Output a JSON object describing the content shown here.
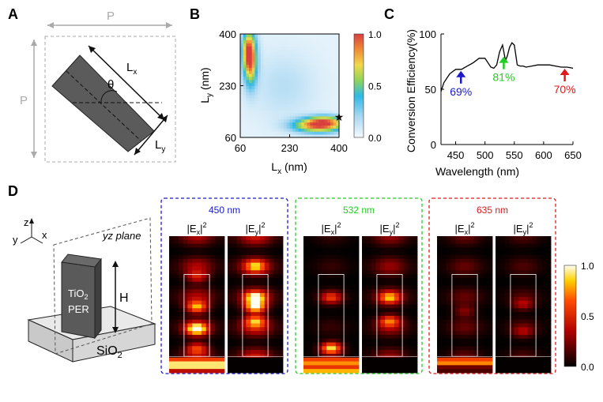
{
  "panels": {
    "a": {
      "letter": "A",
      "p_top": "P",
      "p_left": "P",
      "lx": "L",
      "lx_sub": "x",
      "ly": "L",
      "ly_sub": "y",
      "theta": "θ"
    },
    "b": {
      "letter": "B"
    },
    "c": {
      "letter": "C"
    },
    "d": {
      "letter": "D",
      "axis_z": "z",
      "axis_y": "y",
      "axis_x": "x",
      "plane_label": "yz plane",
      "per_l1": "TiO",
      "per_l1_sub": "2",
      "per_l2": "PER",
      "height": "H",
      "substrate": "SiO",
      "substrate_sub": "2"
    }
  },
  "chart_data": [
    {
      "type": "heatmap",
      "panel": "B",
      "xlabel": "L",
      "xlabel_sub": "x",
      "xlabel_unit": " (nm)",
      "ylabel": "L",
      "ylabel_sub": "y",
      "ylabel_unit": " (nm)",
      "xlim": [
        60,
        400
      ],
      "ylim": [
        60,
        400
      ],
      "xticks": [
        60,
        230,
        400
      ],
      "yticks": [
        60,
        230,
        400
      ],
      "colorbar": {
        "range": [
          0,
          1
        ],
        "ticks": [
          "0.0",
          "0.5",
          "1.0"
        ]
      },
      "marker": {
        "symbol": "★",
        "x": 400,
        "y": 128
      },
      "lobes": [
        {
          "x": 95,
          "y": 320,
          "sx": 16,
          "sy": 60,
          "amp": 0.92
        },
        {
          "x": 82,
          "y": 350,
          "sx": 12,
          "sy": 40,
          "amp": 0.35
        },
        {
          "x": 330,
          "y": 100,
          "sx": 60,
          "sy": 16,
          "amp": 0.92
        },
        {
          "x": 355,
          "y": 118,
          "sx": 45,
          "sy": 12,
          "amp": 0.4
        },
        {
          "x": 210,
          "y": 230,
          "sx": 75,
          "sy": 75,
          "amp": 0.12
        }
      ]
    },
    {
      "type": "line",
      "panel": "C",
      "xlabel": "Wavelength (nm)",
      "ylabel": "Conversion Efficiency(%)",
      "xlim": [
        425,
        650
      ],
      "ylim": [
        0,
        100
      ],
      "xticks": [
        450,
        500,
        550,
        600,
        650
      ],
      "yticks": [
        0,
        50,
        100
      ],
      "x": [
        425,
        430,
        440,
        450,
        460,
        470,
        480,
        490,
        500,
        510,
        515,
        520,
        525,
        530,
        535,
        538,
        542,
        546,
        550,
        555,
        560,
        565,
        570,
        580,
        590,
        600,
        610,
        620,
        630,
        640,
        650
      ],
      "y": [
        48,
        56,
        64,
        68,
        68,
        71,
        74,
        78,
        78,
        70,
        69,
        72,
        84,
        90,
        76,
        80,
        88,
        92,
        90,
        72,
        71,
        71,
        70,
        71,
        72,
        72,
        72,
        71,
        70,
        70,
        69
      ],
      "annotations": [
        {
          "text": "69%",
          "x": 459,
          "y": 68,
          "color": "#1a1acc"
        },
        {
          "text": "81%",
          "x": 532,
          "y": 81,
          "color": "#22cc22"
        },
        {
          "text": "70%",
          "x": 636,
          "y": 70,
          "color": "#e01a1a"
        }
      ]
    },
    {
      "type": "heatmap",
      "panel": "D",
      "colorbar": {
        "range": [
          0,
          1
        ],
        "ticks": [
          "0.0",
          "0.5",
          "1.0"
        ]
      },
      "groups": [
        {
          "wavelength": "450 nm",
          "color": "#1a1acc",
          "maps": [
            {
              "label": "|E",
              "sub": "x",
              "sup": "2",
              "peaks": [
                0.3,
                0.52,
                0.68,
                0.82
              ],
              "amps": [
                0.4,
                0.75,
                0.9,
                0.5
              ],
              "bg": 0.35,
              "bands": [
                0.92,
                0.96
              ]
            },
            {
              "label": "|E",
              "sub": "y",
              "sup": "2",
              "peaks": [
                0.22,
                0.45,
                0.52,
                0.62
              ],
              "amps": [
                0.5,
                0.7,
                0.9,
                0.6
              ],
              "bg": 0.45,
              "bands": []
            }
          ]
        },
        {
          "wavelength": "532 nm",
          "color": "#22cc22",
          "maps": [
            {
              "label": "|E",
              "sub": "x",
              "sup": "2",
              "peaks": [
                0.45,
                0.82
              ],
              "amps": [
                0.5,
                0.9
              ],
              "bg": 0.1,
              "bands": [
                0.92,
                0.98
              ]
            },
            {
              "label": "|E",
              "sub": "y",
              "sup": "2",
              "peaks": [
                0.45,
                0.62
              ],
              "amps": [
                0.6,
                0.55
              ],
              "bg": 0.3,
              "bands": []
            }
          ]
        },
        {
          "wavelength": "635 nm",
          "color": "#e01a1a",
          "maps": [
            {
              "label": "|E",
              "sub": "x",
              "sup": "2",
              "peaks": [
                0.55
              ],
              "amps": [
                0.25
              ],
              "bg": 0.2,
              "bands": [
                0.92
              ]
            },
            {
              "label": "|E",
              "sub": "y",
              "sup": "2",
              "peaks": [
                0.5,
                0.7
              ],
              "amps": [
                0.3,
                0.25
              ],
              "bg": 0.15,
              "bands": []
            }
          ]
        }
      ]
    }
  ]
}
